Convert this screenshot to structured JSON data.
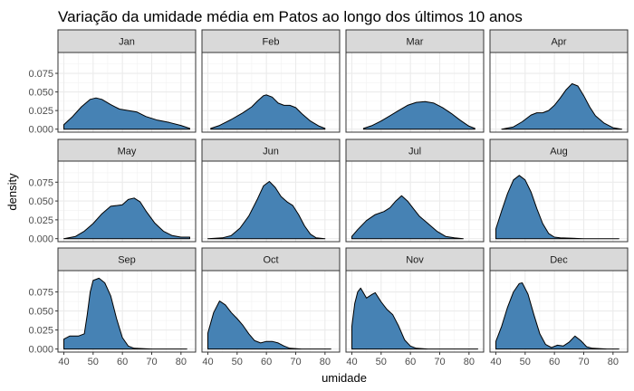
{
  "chart_data": {
    "type": "area",
    "title": "Variação da umidade média em Patos ao longo dos últimos 10 anos",
    "xlabel": "umidade",
    "ylabel": "density",
    "xlim": [
      38,
      85
    ],
    "ylim": [
      -0.004,
      0.103
    ],
    "xticks": [
      40,
      50,
      60,
      70,
      80
    ],
    "yticks": [
      0.0,
      0.025,
      0.05,
      0.075
    ],
    "ytick_labels": [
      "0.000",
      "0.025",
      "0.050",
      "0.075"
    ],
    "grid": true,
    "fill_color": "#4682b4",
    "strip_color": "#d9d9d9",
    "facets": [
      {
        "label": "Jan",
        "points": [
          [
            40,
            0.006
          ],
          [
            43,
            0.017
          ],
          [
            46,
            0.03
          ],
          [
            49,
            0.04
          ],
          [
            51,
            0.042
          ],
          [
            53,
            0.04
          ],
          [
            56,
            0.033
          ],
          [
            59,
            0.027
          ],
          [
            62,
            0.025
          ],
          [
            65,
            0.023
          ],
          [
            68,
            0.017
          ],
          [
            72,
            0.012
          ],
          [
            76,
            0.009
          ],
          [
            80,
            0.005
          ],
          [
            83,
            0.001
          ]
        ]
      },
      {
        "label": "Feb",
        "points": [
          [
            41,
            0.001
          ],
          [
            44,
            0.005
          ],
          [
            48,
            0.013
          ],
          [
            52,
            0.022
          ],
          [
            55,
            0.03
          ],
          [
            57,
            0.038
          ],
          [
            59,
            0.045
          ],
          [
            60,
            0.046
          ],
          [
            62,
            0.043
          ],
          [
            64,
            0.035
          ],
          [
            66,
            0.032
          ],
          [
            68,
            0.032
          ],
          [
            70,
            0.029
          ],
          [
            72,
            0.021
          ],
          [
            75,
            0.011
          ],
          [
            78,
            0.004
          ],
          [
            80,
            0.001
          ]
        ]
      },
      {
        "label": "Mar",
        "points": [
          [
            44,
            0.001
          ],
          [
            47,
            0.005
          ],
          [
            50,
            0.011
          ],
          [
            53,
            0.018
          ],
          [
            56,
            0.025
          ],
          [
            59,
            0.032
          ],
          [
            62,
            0.036
          ],
          [
            65,
            0.037
          ],
          [
            68,
            0.035
          ],
          [
            71,
            0.029
          ],
          [
            74,
            0.021
          ],
          [
            77,
            0.012
          ],
          [
            80,
            0.004
          ],
          [
            82,
            0.001
          ]
        ]
      },
      {
        "label": "Apr",
        "points": [
          [
            42,
            0.0
          ],
          [
            46,
            0.003
          ],
          [
            49,
            0.01
          ],
          [
            52,
            0.019
          ],
          [
            54,
            0.022
          ],
          [
            56,
            0.022
          ],
          [
            58,
            0.025
          ],
          [
            60,
            0.032
          ],
          [
            62,
            0.042
          ],
          [
            64,
            0.053
          ],
          [
            66,
            0.061
          ],
          [
            68,
            0.058
          ],
          [
            70,
            0.045
          ],
          [
            72,
            0.03
          ],
          [
            74,
            0.018
          ],
          [
            77,
            0.008
          ],
          [
            80,
            0.002
          ],
          [
            83,
            0.0
          ]
        ]
      },
      {
        "label": "May",
        "points": [
          [
            40,
            0.0
          ],
          [
            44,
            0.003
          ],
          [
            47,
            0.01
          ],
          [
            50,
            0.02
          ],
          [
            53,
            0.033
          ],
          [
            56,
            0.043
          ],
          [
            58,
            0.044
          ],
          [
            60,
            0.045
          ],
          [
            62,
            0.052
          ],
          [
            64,
            0.054
          ],
          [
            66,
            0.049
          ],
          [
            68,
            0.037
          ],
          [
            71,
            0.021
          ],
          [
            74,
            0.01
          ],
          [
            77,
            0.004
          ],
          [
            80,
            0.002
          ],
          [
            83,
            0.002
          ]
        ]
      },
      {
        "label": "Jun",
        "points": [
          [
            40,
            0.0
          ],
          [
            45,
            0.001
          ],
          [
            48,
            0.004
          ],
          [
            51,
            0.014
          ],
          [
            54,
            0.03
          ],
          [
            57,
            0.053
          ],
          [
            59,
            0.07
          ],
          [
            61,
            0.076
          ],
          [
            63,
            0.068
          ],
          [
            65,
            0.056
          ],
          [
            67,
            0.049
          ],
          [
            69,
            0.044
          ],
          [
            71,
            0.032
          ],
          [
            73,
            0.017
          ],
          [
            75,
            0.006
          ],
          [
            77,
            0.001
          ],
          [
            80,
            0.0
          ]
        ]
      },
      {
        "label": "Jul",
        "points": [
          [
            40,
            0.003
          ],
          [
            42,
            0.012
          ],
          [
            45,
            0.024
          ],
          [
            48,
            0.032
          ],
          [
            51,
            0.036
          ],
          [
            53,
            0.041
          ],
          [
            55,
            0.05
          ],
          [
            57,
            0.057
          ],
          [
            59,
            0.05
          ],
          [
            61,
            0.04
          ],
          [
            63,
            0.03
          ],
          [
            66,
            0.02
          ],
          [
            69,
            0.01
          ],
          [
            72,
            0.003
          ],
          [
            75,
            0.001
          ],
          [
            78,
            0.0
          ]
        ]
      },
      {
        "label": "Aug",
        "points": [
          [
            40,
            0.013
          ],
          [
            42,
            0.037
          ],
          [
            44,
            0.06
          ],
          [
            46,
            0.078
          ],
          [
            48,
            0.084
          ],
          [
            50,
            0.078
          ],
          [
            52,
            0.062
          ],
          [
            54,
            0.04
          ],
          [
            56,
            0.02
          ],
          [
            58,
            0.007
          ],
          [
            60,
            0.002
          ],
          [
            62,
            0.001
          ],
          [
            70,
            0.0
          ],
          [
            82,
            0.0
          ]
        ]
      },
      {
        "label": "Sep",
        "points": [
          [
            40,
            0.013
          ],
          [
            42,
            0.017
          ],
          [
            45,
            0.017
          ],
          [
            47,
            0.02
          ],
          [
            48,
            0.045
          ],
          [
            49,
            0.075
          ],
          [
            50,
            0.09
          ],
          [
            52,
            0.093
          ],
          [
            54,
            0.087
          ],
          [
            56,
            0.07
          ],
          [
            58,
            0.04
          ],
          [
            60,
            0.015
          ],
          [
            62,
            0.004
          ],
          [
            64,
            0.001
          ],
          [
            70,
            0.0
          ],
          [
            82,
            0.0
          ]
        ]
      },
      {
        "label": "Oct",
        "points": [
          [
            40,
            0.021
          ],
          [
            42,
            0.048
          ],
          [
            44,
            0.063
          ],
          [
            46,
            0.058
          ],
          [
            48,
            0.048
          ],
          [
            50,
            0.04
          ],
          [
            52,
            0.031
          ],
          [
            54,
            0.02
          ],
          [
            56,
            0.011
          ],
          [
            58,
            0.008
          ],
          [
            60,
            0.01
          ],
          [
            62,
            0.01
          ],
          [
            64,
            0.008
          ],
          [
            66,
            0.004
          ],
          [
            68,
            0.001
          ],
          [
            72,
            0.0
          ],
          [
            82,
            0.0
          ]
        ]
      },
      {
        "label": "Nov",
        "points": [
          [
            40,
            0.03
          ],
          [
            41,
            0.06
          ],
          [
            42,
            0.075
          ],
          [
            43,
            0.08
          ],
          [
            45,
            0.067
          ],
          [
            47,
            0.072
          ],
          [
            48,
            0.074
          ],
          [
            50,
            0.062
          ],
          [
            52,
            0.052
          ],
          [
            54,
            0.045
          ],
          [
            56,
            0.03
          ],
          [
            58,
            0.012
          ],
          [
            60,
            0.004
          ],
          [
            62,
            0.001
          ],
          [
            66,
            0.0
          ],
          [
            83,
            0.0
          ]
        ]
      },
      {
        "label": "Dec",
        "points": [
          [
            40,
            0.01
          ],
          [
            42,
            0.03
          ],
          [
            44,
            0.055
          ],
          [
            46,
            0.075
          ],
          [
            48,
            0.086
          ],
          [
            49,
            0.087
          ],
          [
            51,
            0.072
          ],
          [
            53,
            0.045
          ],
          [
            55,
            0.02
          ],
          [
            57,
            0.006
          ],
          [
            59,
            0.002
          ],
          [
            61,
            0.005
          ],
          [
            63,
            0.004
          ],
          [
            65,
            0.009
          ],
          [
            67,
            0.017
          ],
          [
            69,
            0.011
          ],
          [
            71,
            0.003
          ],
          [
            73,
            0.001
          ],
          [
            78,
            0.0
          ],
          [
            82,
            0.0
          ]
        ]
      }
    ]
  }
}
